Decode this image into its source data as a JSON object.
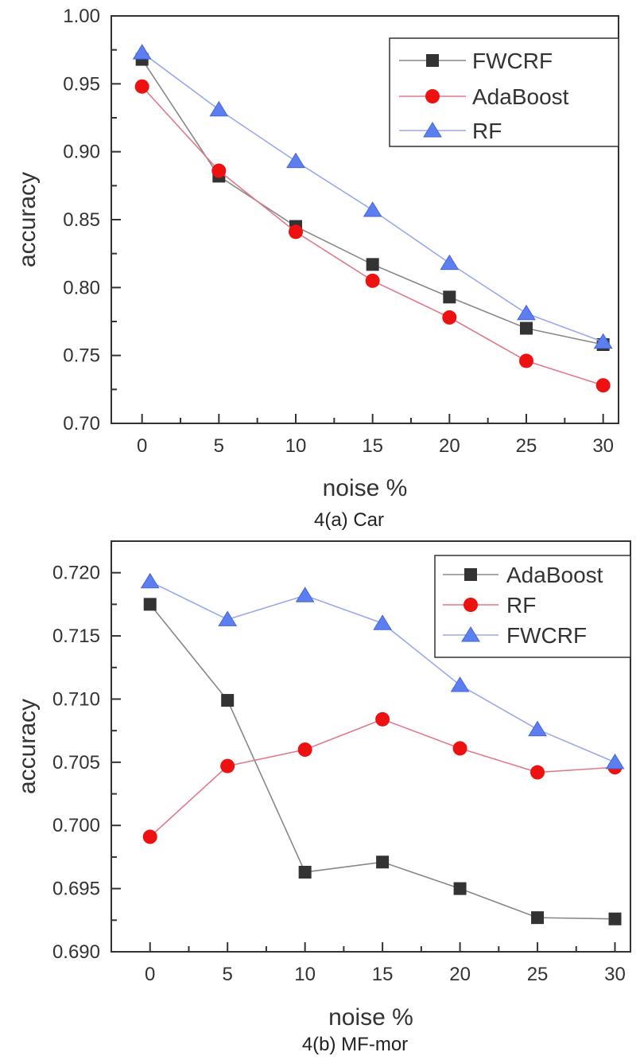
{
  "chart_data": [
    {
      "type": "line",
      "caption": "4(a)  Car",
      "xlabel": "noise %",
      "ylabel": "accuracy",
      "x": [
        0,
        5,
        10,
        15,
        20,
        25,
        30
      ],
      "xticks": [
        "0",
        "5",
        "10",
        "15",
        "20",
        "25",
        "30"
      ],
      "ylim": [
        0.7,
        1.0
      ],
      "yticks": [
        "0.70",
        "0.75",
        "0.80",
        "0.85",
        "0.90",
        "0.95",
        "1.00"
      ],
      "ytick_values": [
        0.7,
        0.75,
        0.8,
        0.85,
        0.9,
        0.95,
        1.0
      ],
      "xlim": [
        -2,
        31
      ],
      "legend_position": "top-right",
      "series": [
        {
          "name": "FWCRF",
          "marker": "square",
          "color": "#333333",
          "line_color": "#888888",
          "values": [
            0.968,
            0.882,
            0.845,
            0.817,
            0.793,
            0.77,
            0.758
          ]
        },
        {
          "name": "AdaBoost",
          "marker": "circle",
          "color": "#ee1111",
          "line_color": "#e07a8a",
          "values": [
            0.948,
            0.886,
            0.841,
            0.805,
            0.778,
            0.746,
            0.728
          ]
        },
        {
          "name": "RF",
          "marker": "triangle",
          "color": "#5b7ff0",
          "line_color": "#9aa8ee",
          "values": [
            0.973,
            0.931,
            0.893,
            0.857,
            0.818,
            0.781,
            0.76
          ]
        }
      ]
    },
    {
      "type": "line",
      "caption": "4(b)  MF-mor",
      "xlabel": "noise %",
      "ylabel": "accuracy",
      "x": [
        0,
        5,
        10,
        15,
        20,
        25,
        30
      ],
      "xticks": [
        "0",
        "5",
        "10",
        "15",
        "20",
        "25",
        "30"
      ],
      "ylim": [
        0.69,
        0.7225
      ],
      "yticks": [
        "0.690",
        "0.695",
        "0.700",
        "0.705",
        "0.710",
        "0.715",
        "0.720"
      ],
      "ytick_values": [
        0.69,
        0.695,
        0.7,
        0.705,
        0.71,
        0.715,
        0.72
      ],
      "xlim": [
        -2.5,
        31
      ],
      "legend_position": "top-right",
      "series": [
        {
          "name": "AdaBoost",
          "marker": "square",
          "color": "#333333",
          "line_color": "#888888",
          "values": [
            0.7175,
            0.7099,
            0.6963,
            0.6971,
            0.695,
            0.6927,
            0.6926
          ]
        },
        {
          "name": "RF",
          "marker": "circle",
          "color": "#ee1111",
          "line_color": "#e07a8a",
          "values": [
            0.6991,
            0.7047,
            0.706,
            0.7084,
            0.7061,
            0.7042,
            0.7046
          ]
        },
        {
          "name": "FWCRF",
          "marker": "triangle",
          "color": "#5b7ff0",
          "line_color": "#9aa8ee",
          "values": [
            0.7193,
            0.7163,
            0.7182,
            0.716,
            0.7111,
            0.7076,
            0.705
          ]
        }
      ]
    }
  ]
}
